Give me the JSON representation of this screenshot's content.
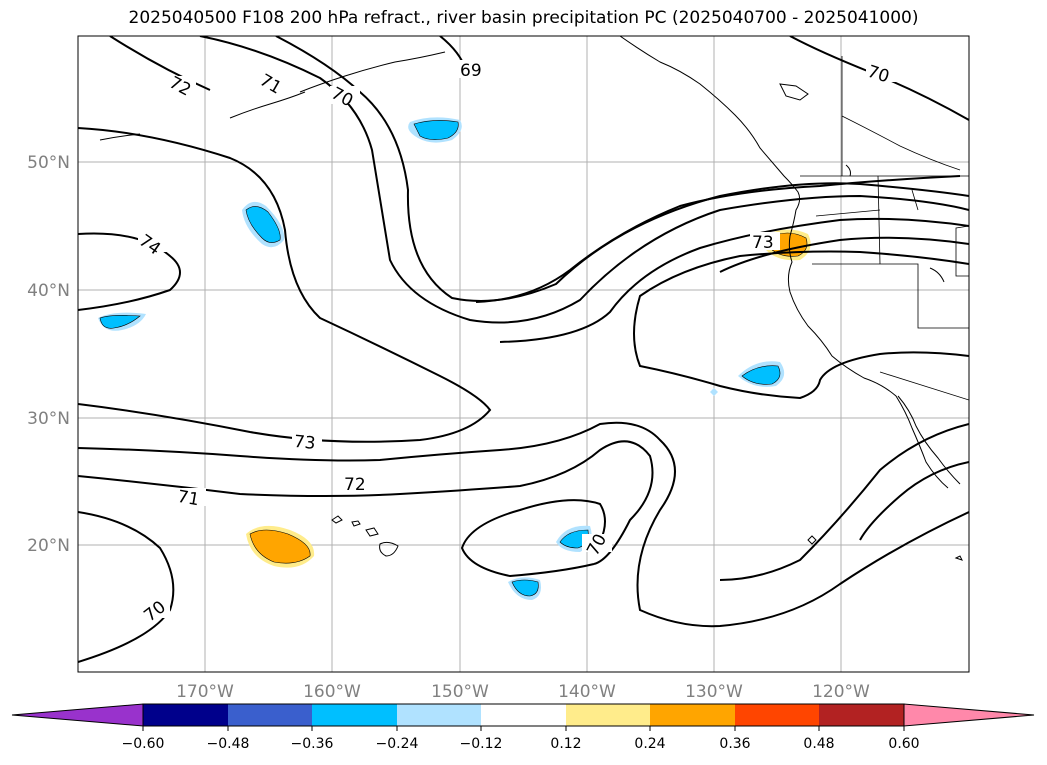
{
  "title": "2025040500 F108 200 hPa refract., river basin precipitation PC (2025040700 - 2025041000)",
  "lat_labels": [
    "50°N",
    "40°N",
    "30°N",
    "20°N"
  ],
  "lon_labels": [
    "170°W",
    "160°W",
    "150°W",
    "140°W",
    "130°W",
    "120°W"
  ],
  "contour_labels": [
    "72",
    "71",
    "70",
    "69",
    "70",
    "74",
    "73",
    "73",
    "72",
    "71",
    "70",
    "70"
  ],
  "colorbar": {
    "colors": [
      "#9932cc",
      "#00008b",
      "#3a5fcd",
      "#00bfff",
      "#b0e2ff",
      "#ffffff",
      "#ffec8b",
      "#ffa500",
      "#ff4500",
      "#b22222",
      "#ff88aa"
    ],
    "ticks": [
      "−0.60",
      "−0.48",
      "−0.36",
      "−0.24",
      "−0.12",
      "0.12",
      "0.24",
      "0.36",
      "0.48",
      "0.60"
    ]
  }
}
